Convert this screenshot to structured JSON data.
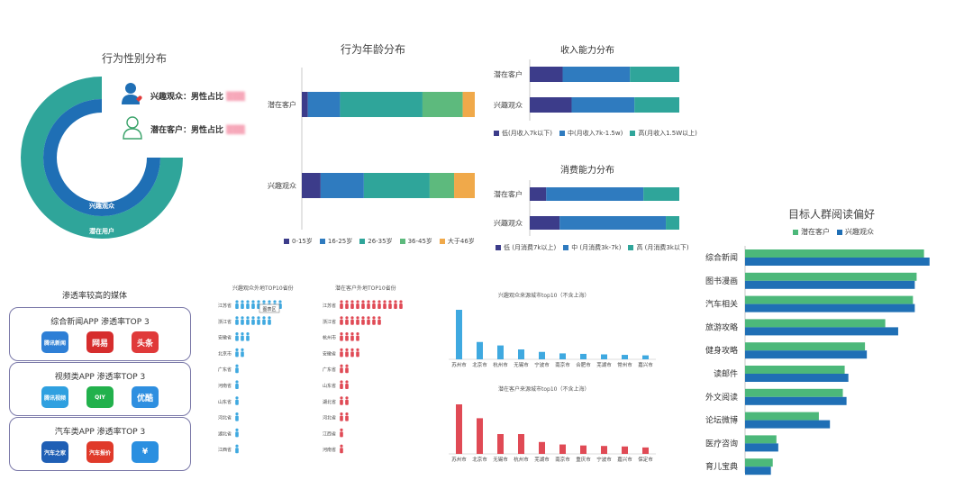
{
  "gender": {
    "title": "行为性别分布",
    "inner_label": "兴趣观众",
    "outer_label": "潜在用户",
    "interest_text": "兴趣观众：男性占比",
    "potential_text": "潜在客户：男性占比"
  },
  "age": {
    "title": "行为年龄分布",
    "categories": [
      "潜在客户",
      "兴趣观众"
    ],
    "legend": [
      "0-15岁",
      "16-25岁",
      "26-35岁",
      "36-45岁",
      "大于46岁"
    ],
    "colors": [
      "#3c3c8a",
      "#2f7bbf",
      "#2fa59a",
      "#5dba7d",
      "#f0a94a"
    ],
    "values": [
      [
        3,
        16,
        41,
        20,
        6
      ],
      [
        10,
        23,
        35,
        13,
        11
      ]
    ]
  },
  "income": {
    "title": "收入能力分布",
    "categories": [
      "潜在客户",
      "兴趣观众"
    ],
    "legend": [
      "低(月收入7k以下)",
      "中(月收入7k-1.5w)",
      "高(月收入1.5W以上)"
    ],
    "colors": [
      "#3c3c8a",
      "#2f7bbf",
      "#2fa59a"
    ],
    "values": [
      [
        22,
        45,
        33
      ],
      [
        28,
        42,
        30
      ]
    ]
  },
  "consume": {
    "title": "消费能力分布",
    "categories": [
      "潜在客户",
      "兴趣观众"
    ],
    "legend": [
      "低 (月消费7k以上)",
      "中 (月消费3k-7k)",
      "高 (月消费3k以下)"
    ],
    "colors": [
      "#3c3c8a",
      "#2f7bbf",
      "#2fa59a"
    ],
    "values": [
      [
        11,
        65,
        24
      ],
      [
        20,
        71,
        9
      ]
    ]
  },
  "reading": {
    "title": "目标人群阅读偏好",
    "legend": [
      "潜在客户",
      "兴趣观众"
    ],
    "colors": [
      "#4cb87a",
      "#1f6fb5"
    ],
    "chart_data": {
      "type": "bar",
      "categories": [
        "综合新闻",
        "图书漫画",
        "汽车相关",
        "旅游攻略",
        "健身攻略",
        "读邮件",
        "外文阅读",
        "论坛微博",
        "医疗咨询",
        "育儿宝典"
      ],
      "series": [
        {
          "name": "潜在客户",
          "values": [
            97,
            93,
            91,
            76,
            65,
            54,
            53,
            40,
            17,
            15
          ]
        },
        {
          "name": "兴趣观众",
          "values": [
            100,
            92,
            92,
            83,
            66,
            56,
            55,
            46,
            18,
            14
          ]
        }
      ],
      "xlim": [
        0,
        105
      ]
    }
  },
  "media": {
    "title": "渗透率较高的媒体",
    "cards": [
      {
        "caption": "综合新闻APP 渗透率TOP 3",
        "apps": [
          {
            "name": "腾讯新闻",
            "color": "#2e7fd6"
          },
          {
            "name": "网易",
            "color": "#d62d2d"
          },
          {
            "name": "头条",
            "color": "#e03a3a"
          }
        ]
      },
      {
        "caption": "视频类APP 渗透率TOP 3",
        "apps": [
          {
            "name": "腾讯视频",
            "color": "#2fa0e0"
          },
          {
            "name": "QIY",
            "color": "#22b14c"
          },
          {
            "name": "优酷",
            "color": "#2e8fe0"
          }
        ]
      },
      {
        "caption": "汽车类APP 渗透率TOP 3",
        "apps": [
          {
            "name": "汽车之家",
            "color": "#1f5fb5"
          },
          {
            "name": "汽车报价",
            "color": "#e03a2a"
          },
          {
            "name": "¥",
            "color": "#2a8fe0"
          }
        ]
      }
    ]
  },
  "provinces": {
    "interest_title": "兴趣观众外地TOP10省份",
    "potential_title": "潜在客户外地TOP10省份",
    "interest": [
      "江苏省",
      "浙江省",
      "安徽省",
      "北京市",
      "广东省",
      "河南省",
      "山东省",
      "河北省",
      "湖北省",
      "江西省"
    ],
    "potential": [
      "江苏省",
      "浙江省",
      "杭州市",
      "安徽省",
      "广东省",
      "山东省",
      "湖北省",
      "河北省",
      "江西省",
      "河南省"
    ],
    "interest_counts": [
      9,
      7,
      3,
      2,
      1,
      1,
      1,
      1,
      1,
      1
    ],
    "potential_counts": [
      12,
      8,
      4,
      4,
      2,
      2,
      2,
      2,
      1,
      1
    ],
    "tooltip": "图表区"
  },
  "cities": {
    "interest_title": "兴趣观众来源城市top10（不含上海）",
    "potential_title": "潜在客户来源城市top10（不含上海）",
    "interest_color": "#3fa9e0",
    "potential_color": "#e04a55",
    "interest": {
      "categories": [
        "苏州市",
        "北京市",
        "杭州市",
        "无锡市",
        "宁波市",
        "南京市",
        "合肥市",
        "芜湖市",
        "常州市",
        "嘉兴市"
      ],
      "values": [
        100,
        35,
        28,
        20,
        15,
        12,
        11,
        10,
        9,
        8
      ]
    },
    "potential": {
      "categories": [
        "苏州市",
        "北京市",
        "无锡市",
        "杭州市",
        "芜湖市",
        "南京市",
        "重庆市",
        "宁波市",
        "嘉兴市",
        "保定市"
      ],
      "values": [
        100,
        72,
        40,
        40,
        24,
        19,
        17,
        16,
        15,
        13
      ]
    }
  }
}
